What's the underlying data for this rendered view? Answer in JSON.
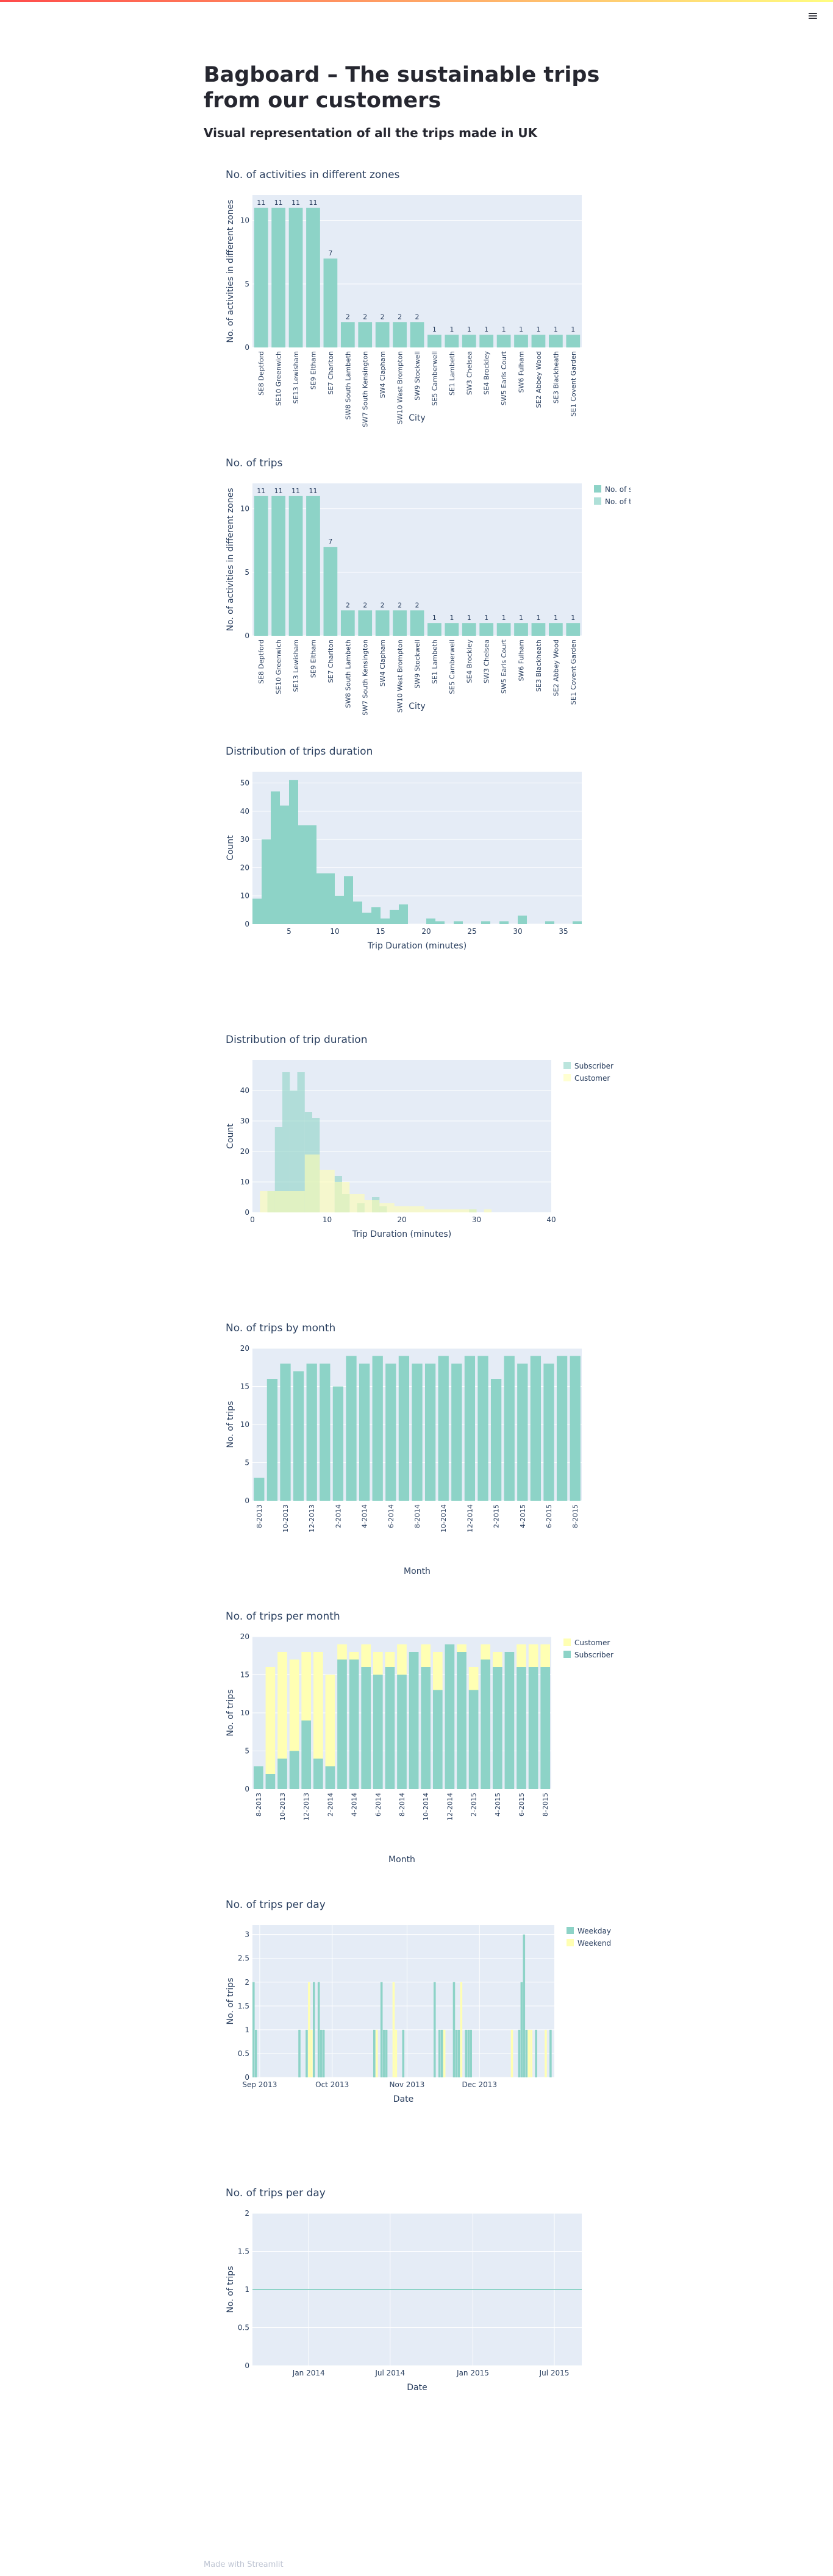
{
  "header": {
    "menu_icon": "hamburger-menu-icon"
  },
  "page": {
    "title": "Bagboard – The sustainable trips from our customers",
    "subtitle": "Visual representation of all the trips made in UK",
    "footer": "Made with Streamlit"
  },
  "colors": {
    "teal": "#8dd3c7",
    "yellow": "#ffffb3",
    "plot_bg": "#e5ecf6",
    "title": "#2a3f5f"
  },
  "chart_data": [
    {
      "id": "chart1",
      "type": "bar",
      "title": "No. of activities in different zones",
      "xlabel": "City",
      "ylabel": "No. of activities in different zones",
      "ylim": [
        0,
        12
      ],
      "yticks": [
        0,
        5,
        10
      ],
      "categories": [
        "SE8 Deptford",
        "SE10 Greenwich",
        "SE13 Lewisham",
        "SE9 Eltham",
        "SE7 Charlton",
        "SW8 South Lambeth",
        "SW7 South Kensington",
        "SW4 Clapham",
        "SW10 West Brompton",
        "SW9 Stockwell",
        "SE5 Camberwell",
        "SE1 Lambeth",
        "SW3 Chelsea",
        "SE4 Brockley",
        "SW5 Earls Court",
        "SW6 Fulham",
        "SE2 Abbey Wood",
        "SE3 Blackheath",
        "SE1 Covent Garden"
      ],
      "values": [
        11,
        11,
        11,
        11,
        7,
        2,
        2,
        2,
        2,
        2,
        1,
        1,
        1,
        1,
        1,
        1,
        1,
        1,
        1
      ],
      "data_labels": [
        "11",
        "11",
        "11",
        "11",
        "7",
        "2",
        "2",
        "2",
        "2",
        "2",
        "1",
        "1",
        "1",
        "1",
        "1",
        "1",
        "1",
        "1",
        "1"
      ]
    },
    {
      "id": "chart2",
      "type": "bar",
      "title": "No. of trips",
      "xlabel": "City",
      "ylabel": "No. of activities in different zones",
      "ylim": [
        0,
        12
      ],
      "yticks": [
        0,
        5,
        10
      ],
      "categories": [
        "SE8 Deptford",
        "SE10 Greenwich",
        "SE13 Lewisham",
        "SE9 Eltham",
        "SE7 Charlton",
        "SW8 South Lambeth",
        "SW7 South Kensington",
        "SW4 Clapham",
        "SW10 West Brompton",
        "SW9 Stockwell",
        "SE1 Lambeth",
        "SE5 Camberwell",
        "SE4 Brockley",
        "SW3 Chelsea",
        "SW5 Earls Court",
        "SW6 Fulham",
        "SE3 Blackheath",
        "SE2 Abbey Wood",
        "SE1 Covent Garden"
      ],
      "values": [
        11,
        11,
        11,
        11,
        7,
        2,
        2,
        2,
        2,
        2,
        1,
        1,
        1,
        1,
        1,
        1,
        1,
        1,
        1
      ],
      "data_labels": [
        "11",
        "11",
        "11",
        "11",
        "7",
        "2",
        "2",
        "2",
        "2",
        "2",
        "1",
        "1",
        "1",
        "1",
        "1",
        "1",
        "1",
        "1",
        "1"
      ],
      "legend": [
        "No. of stations",
        "No. of trips"
      ]
    },
    {
      "id": "chart3",
      "type": "bar",
      "title": "Distribution of  trips duration",
      "xlabel": "Trip Duration (minutes)",
      "ylabel": "Count",
      "xlim": [
        1,
        37
      ],
      "xticks": [
        5,
        10,
        15,
        20,
        25,
        30,
        35
      ],
      "ylim": [
        0,
        54
      ],
      "yticks": [
        0,
        10,
        20,
        30,
        40,
        50
      ],
      "bin_start": 1,
      "bin_width": 1,
      "values": [
        9,
        30,
        47,
        42,
        51,
        35,
        35,
        18,
        18,
        10,
        17,
        8,
        4,
        6,
        2,
        5,
        7,
        0,
        0,
        2,
        1,
        0,
        1,
        0,
        0,
        1,
        0,
        1,
        0,
        3,
        0,
        0,
        1,
        0,
        0,
        1
      ]
    },
    {
      "id": "chart4",
      "type": "bar",
      "title": "Distribution of trip duration",
      "xlabel": "Trip Duration (minutes)",
      "ylabel": "Count",
      "xlim": [
        0,
        40
      ],
      "xticks": [
        0,
        10,
        20,
        30,
        40
      ],
      "ylim": [
        0,
        50
      ],
      "yticks": [
        0,
        10,
        20,
        30,
        40
      ],
      "bin_start": 0,
      "bin_width": 1,
      "series": [
        {
          "name": "Subscriber",
          "color": "#8dd3c7",
          "values": [
            0,
            0,
            7,
            28,
            46,
            40,
            46,
            33,
            31,
            0,
            0,
            12,
            6,
            0,
            3,
            0,
            5,
            2,
            0,
            0,
            0,
            0,
            0,
            0,
            0,
            0,
            0,
            0,
            0,
            1,
            0,
            0,
            0,
            0,
            0,
            0,
            0,
            0,
            0,
            0
          ]
        },
        {
          "name": "Customer",
          "color": "#ffffb3",
          "values": [
            0,
            7,
            7,
            7,
            7,
            7,
            7,
            19,
            19,
            14,
            14,
            10,
            10,
            6,
            6,
            4,
            4,
            3,
            3,
            2,
            2,
            2,
            2,
            1,
            1,
            1,
            1,
            1,
            1,
            1,
            0,
            1,
            0,
            0,
            0,
            0,
            0,
            0,
            0,
            0
          ]
        }
      ]
    },
    {
      "id": "chart5",
      "type": "bar",
      "title": "No. of trips by month",
      "xlabel": "Month",
      "ylabel": "No. of trips",
      "ylim": [
        0,
        20
      ],
      "yticks": [
        0,
        5,
        10,
        15,
        20
      ],
      "categories": [
        "8-2013",
        "9-2013",
        "10-2013",
        "11-2013",
        "12-2013",
        "1-2014",
        "2-2014",
        "3-2014",
        "4-2014",
        "5-2014",
        "6-2014",
        "7-2014",
        "8-2014",
        "9-2014",
        "10-2014",
        "11-2014",
        "12-2014",
        "1-2015",
        "2-2015",
        "3-2015",
        "4-2015",
        "5-2015",
        "6-2015",
        "7-2015",
        "8-2015"
      ],
      "tick_labels": [
        "8-2013",
        "",
        "10-2013",
        "",
        "12-2013",
        "",
        "2-2014",
        "",
        "4-2014",
        "",
        "6-2014",
        "",
        "8-2014",
        "",
        "10-2014",
        "",
        "12-2014",
        "",
        "2-2015",
        "",
        "4-2015",
        "",
        "6-2015",
        "",
        "8-2015"
      ],
      "values": [
        3,
        16,
        18,
        17,
        18,
        18,
        15,
        19,
        18,
        19,
        18,
        19,
        18,
        18,
        19,
        18,
        19,
        19,
        16,
        19,
        18,
        19,
        18,
        19,
        19
      ]
    },
    {
      "id": "chart6",
      "type": "bar",
      "title": "No. of trips per month",
      "xlabel": "Month",
      "ylabel": "No. of trips",
      "ylim": [
        0,
        20
      ],
      "yticks": [
        0,
        5,
        10,
        15,
        20
      ],
      "categories": [
        "8-2013",
        "9-2013",
        "10-2013",
        "11-2013",
        "12-2013",
        "1-2014",
        "2-2014",
        "3-2014",
        "4-2014",
        "5-2014",
        "6-2014",
        "7-2014",
        "8-2014",
        "9-2014",
        "10-2014",
        "11-2014",
        "12-2014",
        "1-2015",
        "2-2015",
        "3-2015",
        "4-2015",
        "5-2015",
        "6-2015",
        "7-2015",
        "8-2015"
      ],
      "tick_labels": [
        "8-2013",
        "",
        "10-2013",
        "",
        "12-2013",
        "",
        "2-2014",
        "",
        "4-2014",
        "",
        "6-2014",
        "",
        "8-2014",
        "",
        "10-2014",
        "",
        "12-2014",
        "",
        "2-2015",
        "",
        "4-2015",
        "",
        "6-2015",
        "",
        "8-2015"
      ],
      "series": [
        {
          "name": "Subscriber",
          "color": "#8dd3c7",
          "values": [
            3,
            2,
            4,
            5,
            9,
            4,
            3,
            17,
            17,
            16,
            15,
            16,
            15,
            18,
            16,
            13,
            19,
            18,
            13,
            17,
            16,
            18,
            16,
            16,
            16
          ]
        },
        {
          "name": "Customer",
          "color": "#ffffb3",
          "values": [
            0,
            14,
            14,
            12,
            9,
            14,
            12,
            2,
            1,
            3,
            3,
            2,
            4,
            0,
            3,
            5,
            0,
            1,
            3,
            2,
            2,
            0,
            3,
            3,
            3
          ]
        }
      ],
      "legend": [
        "Customer",
        "Subscriber"
      ]
    },
    {
      "id": "chart7",
      "type": "bar",
      "title": "No. of trips per day",
      "xlabel": "Date",
      "ylabel": "No. of trips",
      "ylim": [
        0,
        3.2
      ],
      "yticks": [
        0,
        0.5,
        1,
        1.5,
        2,
        2.5,
        3
      ],
      "x_start": "2013-08-29",
      "x_end": "2014-01-01",
      "xticks": [
        {
          "date": "2013-09-01",
          "label": "Sep 2013"
        },
        {
          "date": "2013-10-01",
          "label": "Oct 2013"
        },
        {
          "date": "2013-11-01",
          "label": "Nov 2013"
        },
        {
          "date": "2013-12-01",
          "label": "Dec 2013"
        }
      ],
      "series": [
        {
          "name": "Weekday",
          "color": "#8dd3c7",
          "days": [
            [
              "2013-08-29",
              2
            ],
            [
              "2013-08-30",
              1
            ],
            [
              "2013-09-17",
              1
            ],
            [
              "2013-09-20",
              1
            ],
            [
              "2013-09-23",
              2
            ],
            [
              "2013-09-25",
              2
            ],
            [
              "2013-09-26",
              1
            ],
            [
              "2013-09-27",
              1
            ],
            [
              "2013-10-18",
              1
            ],
            [
              "2013-10-21",
              2
            ],
            [
              "2013-10-22",
              1
            ],
            [
              "2013-10-23",
              1
            ],
            [
              "2013-10-30",
              1
            ],
            [
              "2013-11-12",
              2
            ],
            [
              "2013-11-14",
              1
            ],
            [
              "2013-11-15",
              1
            ],
            [
              "2013-11-20",
              2
            ],
            [
              "2013-11-21",
              1
            ],
            [
              "2013-11-22",
              1
            ],
            [
              "2013-11-25",
              1
            ],
            [
              "2013-11-26",
              1
            ],
            [
              "2013-11-27",
              1
            ],
            [
              "2013-12-17",
              1
            ],
            [
              "2013-12-18",
              2
            ],
            [
              "2013-12-19",
              3
            ],
            [
              "2013-12-20",
              1
            ],
            [
              "2013-12-24",
              1
            ],
            [
              "2013-12-30",
              1
            ]
          ]
        },
        {
          "name": "Weekend",
          "color": "#ffffb3",
          "days": [
            [
              "2013-09-21",
              2
            ],
            [
              "2013-09-22",
              1
            ],
            [
              "2013-10-19",
              1
            ],
            [
              "2013-10-26",
              2
            ],
            [
              "2013-10-27",
              1
            ],
            [
              "2013-11-16",
              1
            ],
            [
              "2013-11-23",
              2
            ],
            [
              "2013-12-14",
              1
            ],
            [
              "2013-12-21",
              1
            ],
            [
              "2013-12-22",
              1
            ],
            [
              "2013-12-28",
              1
            ]
          ]
        }
      ]
    },
    {
      "id": "chart8",
      "type": "line",
      "title": "No. of trips per day",
      "xlabel": "Date",
      "ylabel": "No. of trips",
      "ylim": [
        0,
        2
      ],
      "yticks": [
        0,
        0.5,
        1,
        1.5,
        2
      ],
      "x_start": "2013-08-29",
      "x_end": "2015-08-31",
      "xticks": [
        {
          "date": "2014-01-01",
          "label": "Jan 2014"
        },
        {
          "date": "2014-07-01",
          "label": "Jul 2014"
        },
        {
          "date": "2015-01-01",
          "label": "Jan 2015"
        },
        {
          "date": "2015-07-01",
          "label": "Jul 2015"
        }
      ],
      "series": [
        {
          "name": "",
          "color": "#8dd3c7",
          "points": [
            [
              "2013-08-29",
              1
            ],
            [
              "2015-08-31",
              1
            ]
          ]
        }
      ]
    }
  ]
}
